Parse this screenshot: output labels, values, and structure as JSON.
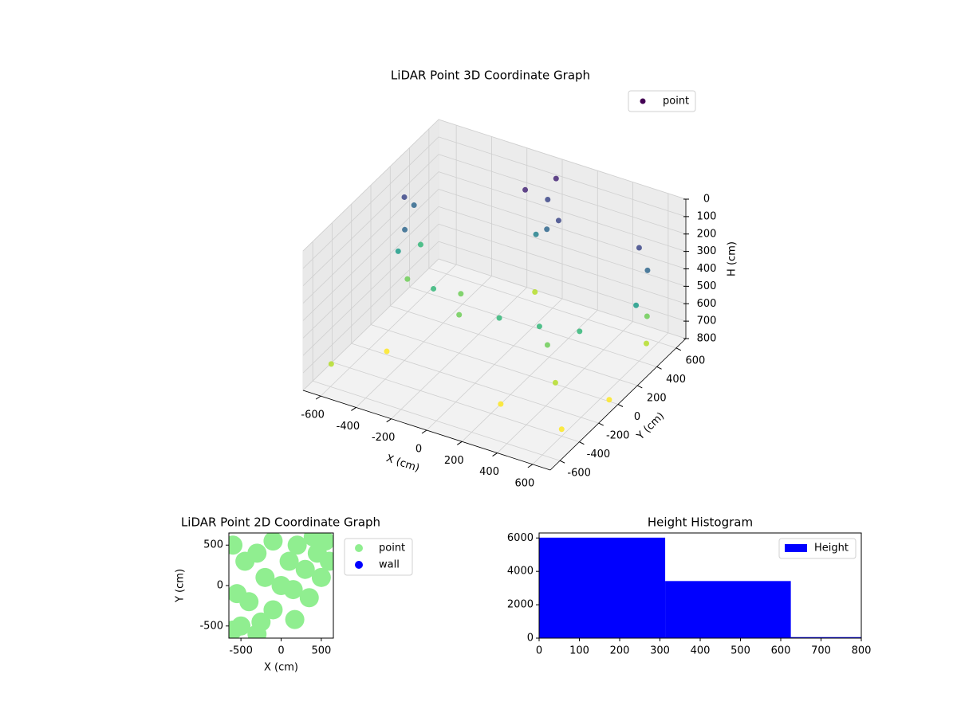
{
  "chart_data": [
    {
      "type": "scatter3d",
      "title": "LiDAR Point 3D Coordinate Graph",
      "xlabel": "X (cm)",
      "ylabel": "Y (cm)",
      "zlabel": "H (cm)",
      "xlim": [
        -700,
        700
      ],
      "ylim": [
        -700,
        700
      ],
      "zlim": [
        800,
        0
      ],
      "xticks": [
        -600,
        -400,
        -200,
        0,
        200,
        400,
        600
      ],
      "yticks": [
        -600,
        -400,
        -200,
        0,
        200,
        400,
        600
      ],
      "zticks": [
        0,
        100,
        200,
        300,
        400,
        500,
        600,
        700,
        800
      ],
      "colormap": "viridis",
      "grid": true,
      "legend": "upper right",
      "series": [
        {
          "name": "point",
          "color": "#440154",
          "x": [
            -620,
            -620,
            -600,
            -610,
            -630,
            -590,
            600,
            620,
            610,
            590,
            630,
            -100,
            0,
            50,
            -50,
            100,
            20,
            -400,
            -200,
            0,
            200,
            400,
            -300,
            300,
            -500,
            200,
            600,
            -650,
            400,
            -100,
            650
          ],
          "y": [
            200,
            300,
            100,
            350,
            250,
            150,
            400,
            450,
            350,
            500,
            420,
            500,
            550,
            450,
            520,
            480,
            600,
            100,
            0,
            50,
            100,
            150,
            200,
            0,
            -200,
            -300,
            -400,
            -500,
            -100,
            600,
            0
          ],
          "z": [
            150,
            250,
            400,
            500,
            650,
            300,
            150,
            300,
            450,
            600,
            700,
            100,
            150,
            250,
            350,
            200,
            50,
            550,
            580,
            560,
            570,
            560,
            600,
            590,
            780,
            800,
            760,
            740,
            720,
            740,
            790
          ]
        }
      ]
    },
    {
      "type": "scatter",
      "title": "LiDAR Point 2D Coordinate Graph",
      "xlabel": "X (cm)",
      "ylabel": "Y (cm)",
      "xlim": [
        -650,
        650
      ],
      "ylim": [
        -650,
        650
      ],
      "xticks": [
        -500,
        0,
        500
      ],
      "yticks": [
        -500,
        0,
        500
      ],
      "legend": "outside right",
      "series": [
        {
          "name": "point",
          "color": "#90ee90",
          "x": [
            -600,
            -450,
            -300,
            -200,
            -400,
            -500,
            -300,
            -100,
            0,
            100,
            200,
            300,
            400,
            500,
            600,
            -550,
            -250,
            150,
            350,
            -100,
            450,
            170,
            -600,
            550
          ],
          "y": [
            500,
            300,
            400,
            100,
            -200,
            -500,
            -600,
            -300,
            0,
            300,
            500,
            200,
            600,
            100,
            300,
            -100,
            -450,
            -50,
            -150,
            550,
            400,
            -420,
            -550,
            550
          ]
        },
        {
          "name": "wall",
          "color": "#0000ff",
          "x": [],
          "y": []
        }
      ]
    },
    {
      "type": "histogram",
      "title": "Height Histogram",
      "bins": [
        0,
        313,
        625,
        938
      ],
      "values": [
        6020,
        3420,
        60
      ],
      "series_name": "Height",
      "color": "#0000ff",
      "legend": "upper right",
      "xlim": [
        0,
        800
      ],
      "ylim": [
        0,
        6300
      ],
      "xticks": [
        0,
        100,
        200,
        300,
        400,
        500,
        600,
        700,
        800
      ],
      "yticks": [
        0,
        2000,
        4000,
        6000
      ]
    }
  ]
}
